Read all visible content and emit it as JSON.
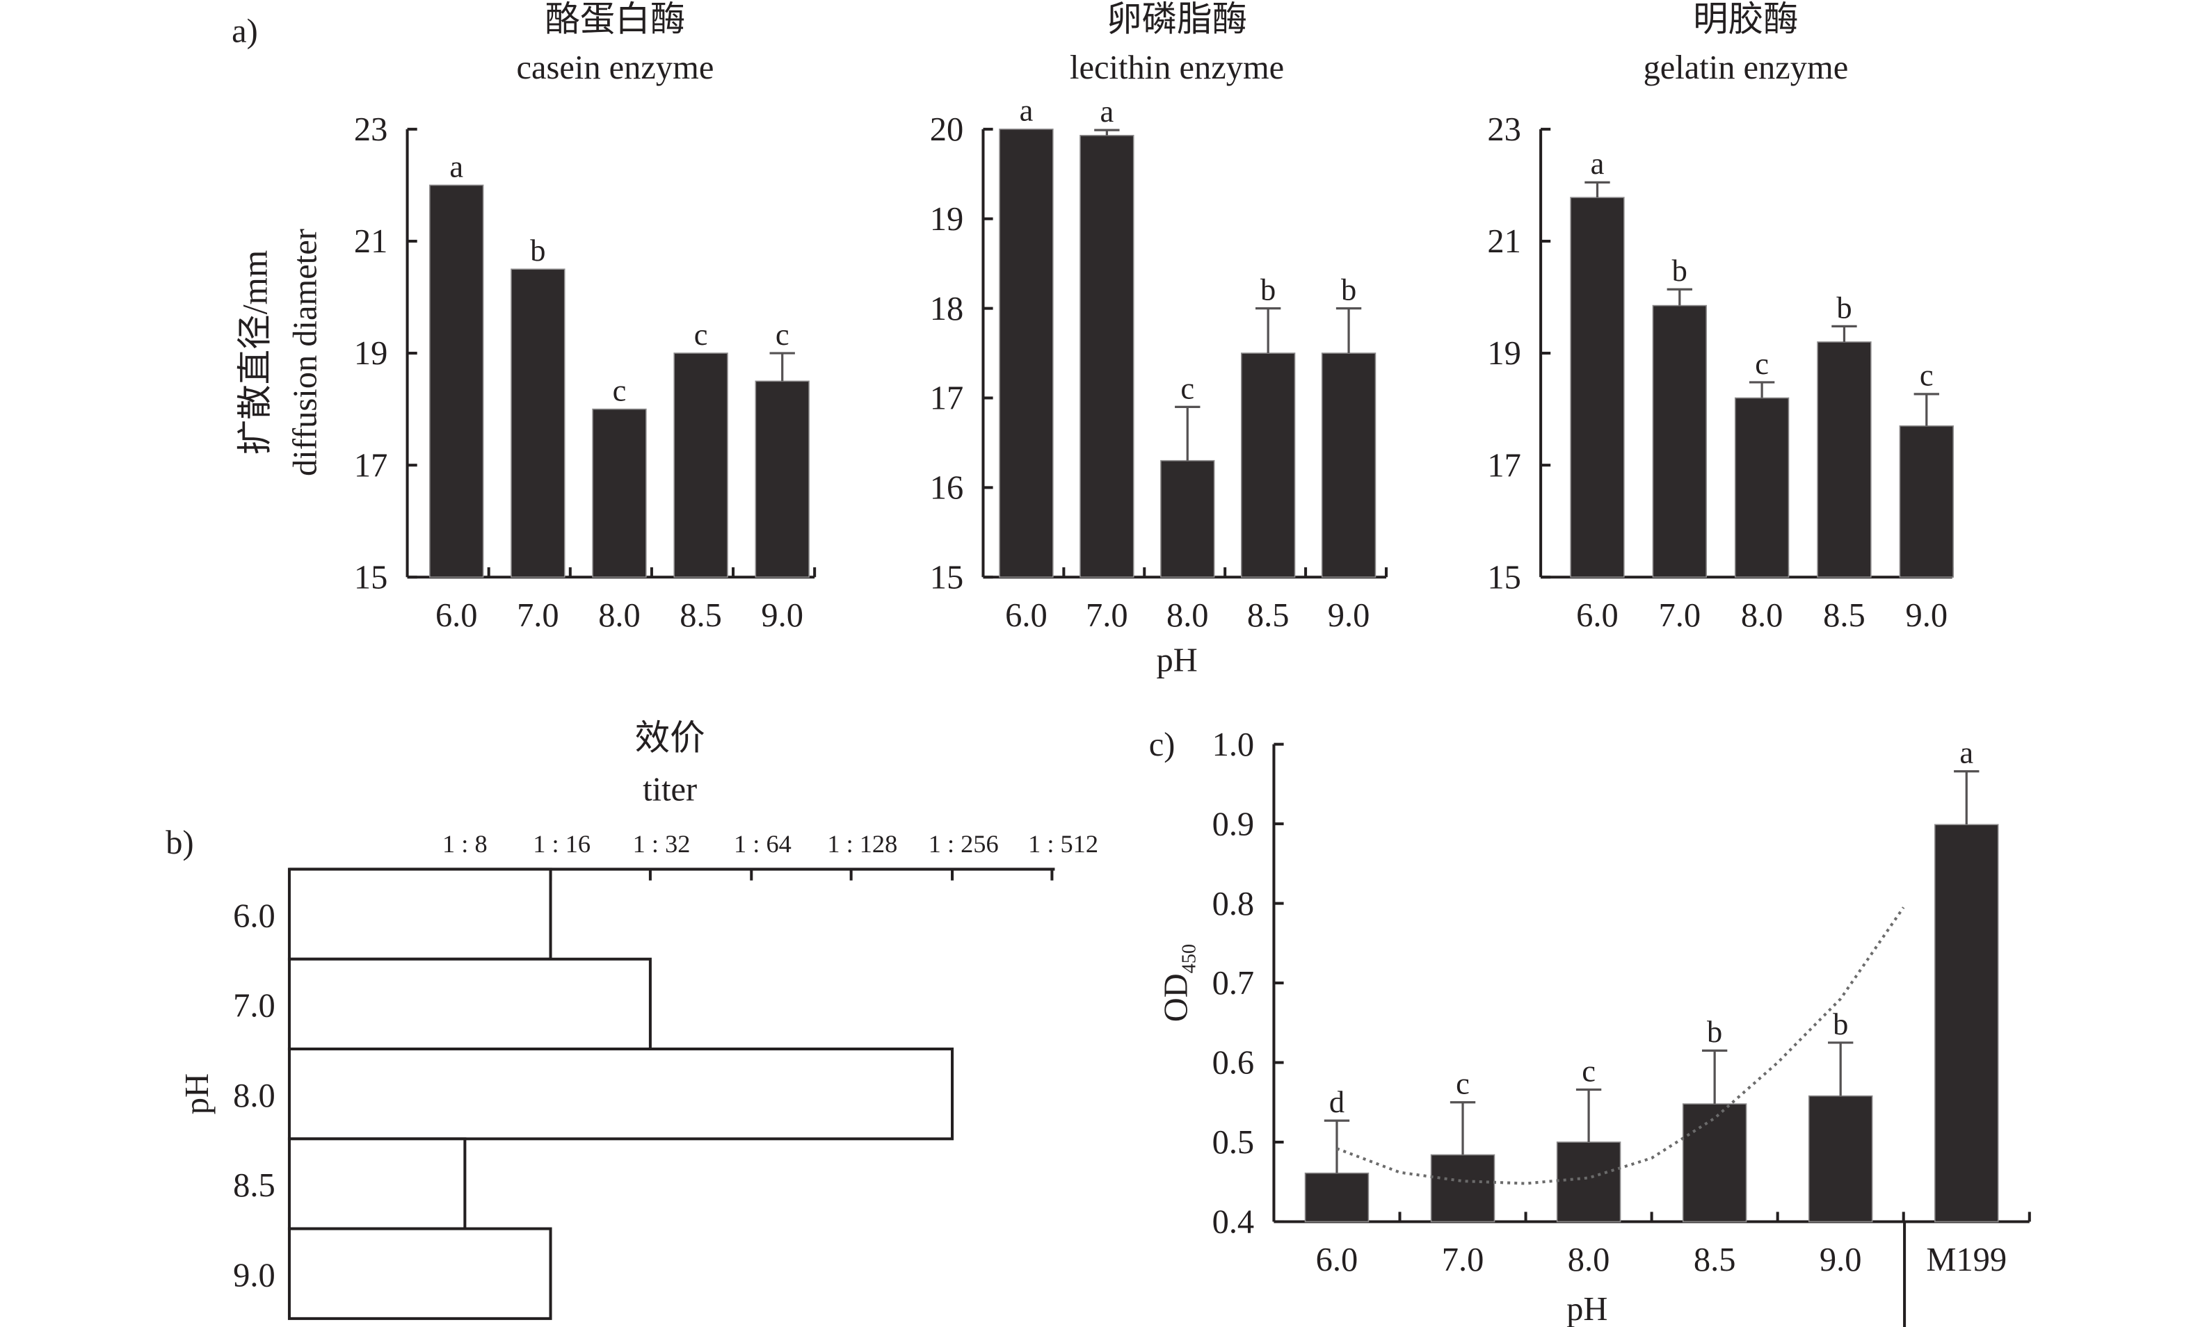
{
  "figure": {
    "panel_labels": {
      "a": "a)",
      "b": "b)",
      "c": "c)"
    },
    "shared_xlabel_a": "pH"
  },
  "chart_data": [
    {
      "id": "a1",
      "type": "bar",
      "title": "酪蛋白酶",
      "subtitle": "casein enzyme",
      "xlabel": "",
      "ylabel": "扩散直径/mm",
      "ylabel_en": "diffusion diameter",
      "categories": [
        "6.0",
        "7.0",
        "8.0",
        "8.5",
        "9.0"
      ],
      "values": [
        22.0,
        20.5,
        18.0,
        19.0,
        18.5
      ],
      "errors": [
        0,
        0,
        0,
        0,
        0.5
      ],
      "significance": [
        "a",
        "b",
        "c",
        "c",
        "c"
      ],
      "ylim": [
        15,
        23
      ],
      "yticks": [
        15,
        17,
        19,
        21,
        23
      ],
      "grid": false
    },
    {
      "id": "a2",
      "type": "bar",
      "title": "卵磷脂酶",
      "subtitle": "lecithin enzyme",
      "xlabel": "pH",
      "ylabel": "",
      "categories": [
        "6.0",
        "7.0",
        "8.0",
        "8.5",
        "9.0"
      ],
      "values": [
        20.0,
        19.93,
        16.3,
        17.5,
        17.5
      ],
      "errors": [
        0,
        0.06,
        0.6,
        0.5,
        0.5
      ],
      "significance": [
        "a",
        "a",
        "c",
        "b",
        "b"
      ],
      "ylim": [
        15,
        20
      ],
      "yticks": [
        15,
        16,
        17,
        18,
        19,
        20
      ],
      "grid": false
    },
    {
      "id": "a3",
      "type": "bar",
      "title": "明胶酶",
      "subtitle": "gelatin enzyme",
      "xlabel": "",
      "ylabel": "",
      "categories": [
        "6.0",
        "7.0",
        "8.0",
        "8.5",
        "9.0"
      ],
      "values": [
        21.78,
        19.85,
        18.2,
        19.2,
        17.7
      ],
      "errors": [
        0.27,
        0.29,
        0.28,
        0.28,
        0.57
      ],
      "significance": [
        "a",
        "b",
        "c",
        "b",
        "c"
      ],
      "ylim": [
        15,
        23
      ],
      "yticks": [
        15,
        17,
        19,
        21,
        23
      ],
      "grid": false
    },
    {
      "id": "b",
      "type": "bar",
      "orientation": "horizontal",
      "title": "效价",
      "subtitle": "titer",
      "xlabel": "titer",
      "ylabel": "pH",
      "categories": [
        "6.0",
        "7.0",
        "8.0",
        "8.5",
        "9.0"
      ],
      "values": [
        16,
        32,
        256,
        8,
        16
      ],
      "value_labels": [
        "1 : 16",
        "1 : 32",
        "1 : 256",
        "1 : 8",
        "1 : 16"
      ],
      "xticks": [
        "1 : 8",
        "1 : 16",
        "1 : 32",
        "1 : 64",
        "1 : 128",
        "1 : 256",
        "1 : 512"
      ],
      "xscale": "log2",
      "grid": false
    },
    {
      "id": "c",
      "type": "bar",
      "xlabel": "pH",
      "ylabel": "OD",
      "ylabel_sub": "450",
      "categories": [
        "6.0",
        "7.0",
        "8.0",
        "8.5",
        "9.0",
        "M199"
      ],
      "values": [
        0.461,
        0.484,
        0.5,
        0.548,
        0.558,
        0.899
      ],
      "errors": [
        0.066,
        0.066,
        0.066,
        0.067,
        0.067,
        0.067
      ],
      "significance": [
        "d",
        "c",
        "c",
        "b",
        "b",
        "a"
      ],
      "ylim": [
        0.4,
        1.0
      ],
      "yticks": [
        "0.4",
        "0.5",
        "0.6",
        "0.7",
        "0.8",
        "0.9",
        "1.0"
      ],
      "trendline": {
        "style": "dotted",
        "type": "polynomial",
        "points": [
          [
            0,
            0.492
          ],
          [
            0.5,
            0.462
          ],
          [
            1,
            0.451
          ],
          [
            1.5,
            0.448
          ],
          [
            2,
            0.455
          ],
          [
            2.5,
            0.48
          ],
          [
            3,
            0.53
          ],
          [
            3.5,
            0.6
          ],
          [
            4,
            0.68
          ],
          [
            4.5,
            0.795
          ]
        ]
      },
      "grid": false
    }
  ],
  "colors": {
    "bar": "#2e2a2b",
    "axis": "#231f20",
    "error": "#555253",
    "trend": "#6b6b6b"
  }
}
